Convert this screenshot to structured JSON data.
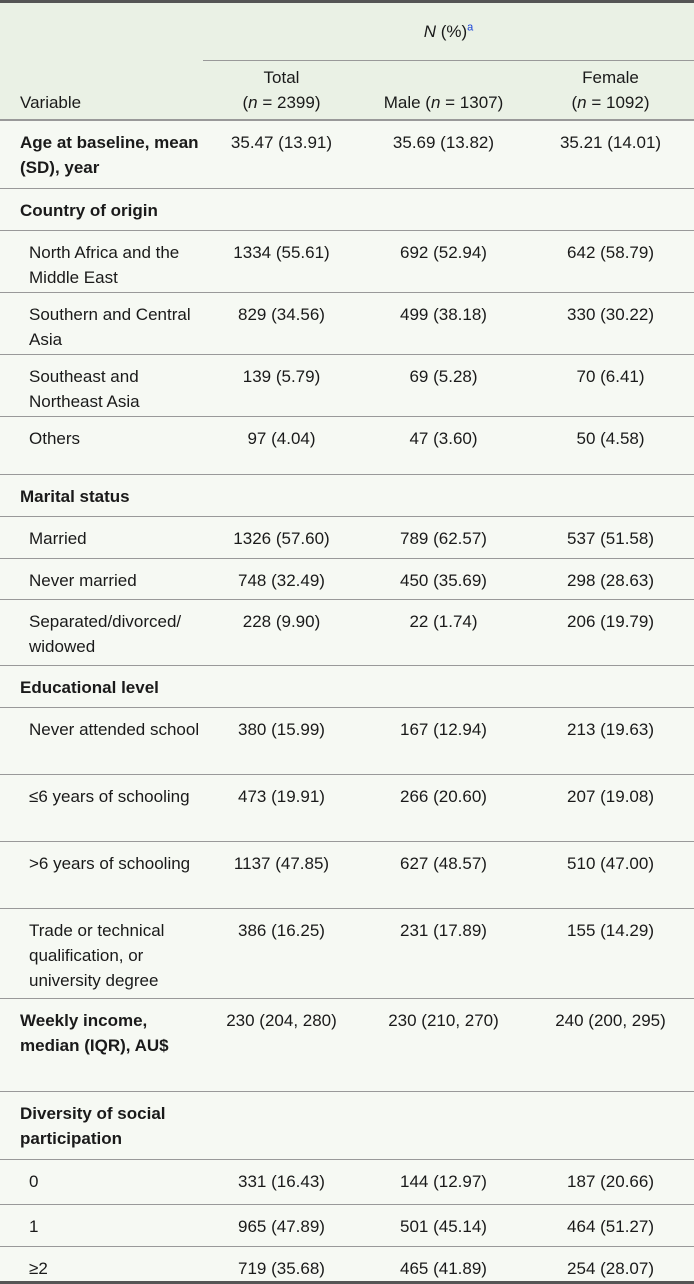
{
  "header": {
    "group_label_italic": "N",
    "group_label_rest": " (%)",
    "footnote_marker": "a",
    "variable_label": "Variable",
    "columns": [
      {
        "name": "Total",
        "n_symbol": "n",
        "n_rest": " = 2399)",
        "open": "(",
        "two_line": true
      },
      {
        "name": "Male",
        "n_symbol": "n",
        "n_rest": " = 1307)",
        "open": "(",
        "two_line": false
      },
      {
        "name": "Female",
        "n_symbol": "n",
        "n_rest": " = 1092)",
        "open": "(",
        "two_line": true
      }
    ]
  },
  "rows": [
    {
      "label": "Age at baseline, mean (SD), year",
      "kind": "bold",
      "values": [
        "35.47 (13.91)",
        "35.69 (13.82)",
        "35.21 (14.01)"
      ]
    },
    {
      "label": "Country of origin",
      "kind": "bold",
      "values": []
    },
    {
      "label": "North Africa and the Middle East",
      "kind": "item",
      "values": [
        "1334 (55.61)",
        "692 (52.94)",
        "642 (58.79)"
      ]
    },
    {
      "label": "Southern and Central Asia",
      "kind": "item",
      "values": [
        "829 (34.56)",
        "499 (38.18)",
        "330 (30.22)"
      ]
    },
    {
      "label": "Southeast and Northeast Asia",
      "kind": "item",
      "values": [
        "139 (5.79)",
        "69 (5.28)",
        "70 (6.41)"
      ]
    },
    {
      "label": "Others",
      "kind": "item",
      "values": [
        "97 (4.04)",
        "47 (3.60)",
        "50 (4.58)"
      ]
    },
    {
      "label": "Marital status",
      "kind": "bold",
      "values": []
    },
    {
      "label": "Married",
      "kind": "item",
      "values": [
        "1326 (57.60)",
        "789 (62.57)",
        "537 (51.58)"
      ]
    },
    {
      "label": "Never married",
      "kind": "item",
      "values": [
        "748 (32.49)",
        "450 (35.69)",
        "298 (28.63)"
      ]
    },
    {
      "label": "Separated/divorced/ widowed",
      "kind": "item",
      "values": [
        "228 (9.90)",
        "22 (1.74)",
        "206 (19.79)"
      ]
    },
    {
      "label": "Educational level",
      "kind": "bold",
      "values": []
    },
    {
      "label": "Never attended school",
      "kind": "item",
      "values": [
        "380 (15.99)",
        "167 (12.94)",
        "213 (19.63)"
      ]
    },
    {
      "label": "≤6 years of schooling",
      "kind": "item",
      "values": [
        "473 (19.91)",
        "266 (20.60)",
        "207 (19.08)"
      ]
    },
    {
      "label": ">6 years of schooling",
      "kind": "item",
      "values": [
        "1137 (47.85)",
        "627 (48.57)",
        "510 (47.00)"
      ]
    },
    {
      "label": "Trade or technical qualification, or university degree",
      "kind": "item",
      "values": [
        "386 (16.25)",
        "231 (17.89)",
        "155 (14.29)"
      ]
    },
    {
      "label": "Weekly income, median (IQR), AU$",
      "kind": "bold",
      "values": [
        "230 (204, 280)",
        "230 (210, 270)",
        "240 (200, 295)"
      ]
    },
    {
      "label": "Diversity of social participation",
      "kind": "bold",
      "values": []
    },
    {
      "label": "0",
      "kind": "item",
      "values": [
        "331 (16.43)",
        "144 (12.97)",
        "187 (20.66)"
      ]
    },
    {
      "label": "1",
      "kind": "item",
      "values": [
        "965 (47.89)",
        "501 (45.14)",
        "464 (51.27)"
      ]
    },
    {
      "label": "≥2",
      "kind": "item",
      "values": [
        "719 (35.68)",
        "465 (41.89)",
        "254 (28.07)"
      ]
    }
  ]
}
